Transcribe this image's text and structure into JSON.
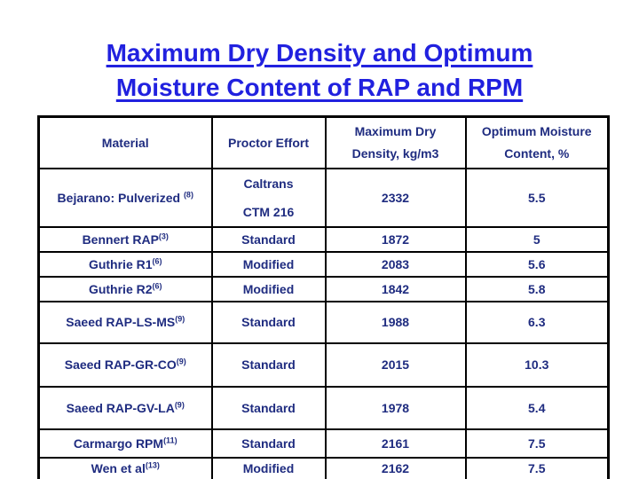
{
  "title": {
    "line1": "Maximum Dry Density and Optimum",
    "line2": "Moisture Content of RAP and RPM"
  },
  "colors": {
    "title_blue": "#2121DF",
    "table_text_navy": "#1F2C80",
    "border_black": "#000000",
    "background": "#FFFFFF"
  },
  "table": {
    "headers": {
      "material": "Material",
      "effort": "Proctor Effort",
      "density_line1": "Maximum Dry",
      "density_line2": "Density, kg/m3",
      "moisture_line1": "Optimum Moisture",
      "moisture_line2": "Content, %"
    },
    "rows": [
      {
        "material": "Bejarano: Pulverized ",
        "sup": "(8)",
        "effort_line1": "Caltrans",
        "effort_line2": "CTM 216",
        "density": "2332",
        "moisture": "5.5"
      },
      {
        "material": "Bennert RAP",
        "sup": "(3)",
        "effort": "Standard",
        "density": "1872",
        "moisture": "5"
      },
      {
        "material": "Guthrie R1",
        "sup": "(6)",
        "effort": "Modified",
        "density": "2083",
        "moisture": "5.6"
      },
      {
        "material": "Guthrie R2",
        "sup": "(6)",
        "effort": "Modified",
        "density": "1842",
        "moisture": "5.8"
      },
      {
        "material": "Saeed RAP-LS-MS",
        "sup": "(9)",
        "effort": "Standard",
        "density": "1988",
        "moisture": "6.3"
      },
      {
        "material": "Saeed RAP-GR-CO",
        "sup": "(9)",
        "effort": "Standard",
        "density": "2015",
        "moisture": "10.3"
      },
      {
        "material": "Saeed RAP-GV-LA",
        "sup": "(9)",
        "effort": "Standard",
        "density": "1978",
        "moisture": "5.4"
      },
      {
        "material": "Carmargo RPM",
        "sup": "(11)",
        "effort": "Standard",
        "density": "2161",
        "moisture": "7.5"
      },
      {
        "material": "Wen et al",
        "sup": "(13)",
        "effort": "Modified",
        "density": "2162",
        "moisture": "7.5"
      }
    ]
  }
}
